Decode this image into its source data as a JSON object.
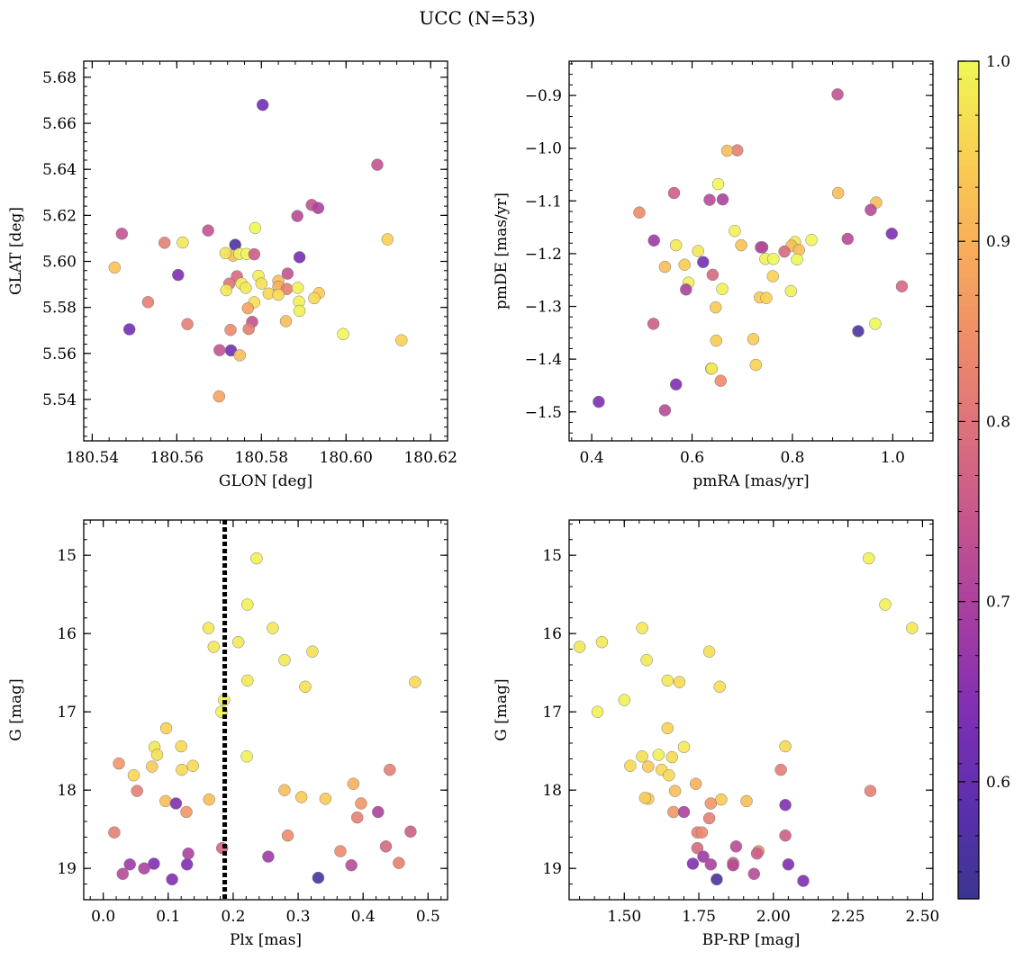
{
  "figure": {
    "title": "UCC (N=53)",
    "colorbar": {
      "range": [
        0.535,
        1.0
      ],
      "ticks": [
        0.6,
        0.7,
        0.8,
        0.9,
        1.0
      ],
      "tick_labels": [
        "0.6",
        "0.7",
        "0.8",
        "0.9",
        "1.0"
      ],
      "colormap": "plasma",
      "colors": [
        "#3a3691",
        "#5b2fae",
        "#7e2fb4",
        "#a53da3",
        "#c4538f",
        "#dc6f7c",
        "#ee8c69",
        "#f8ad5a",
        "#f9cf52",
        "#f0f756"
      ]
    }
  },
  "chart_data": [
    {
      "type": "scatter",
      "xlabel": "GLON [deg]",
      "ylabel": "GLAT [deg]",
      "xlim": [
        180.538,
        180.624
      ],
      "ylim": [
        5.522,
        5.687
      ],
      "xticks": [
        180.54,
        180.56,
        180.58,
        180.6,
        180.62
      ],
      "xtick_labels": [
        "180.54",
        "180.56",
        "180.58",
        "180.60",
        "180.62"
      ],
      "yticks": [
        5.54,
        5.56,
        5.58,
        5.6,
        5.62,
        5.64,
        5.66,
        5.68
      ],
      "ytick_labels": [
        "5.54",
        "5.56",
        "5.58",
        "5.60",
        "5.62",
        "5.64",
        "5.66",
        "5.68"
      ],
      "points": [
        [
          180.5803,
          5.668,
          0.62
        ],
        [
          180.6074,
          5.642,
          0.74
        ],
        [
          180.5919,
          5.6245,
          0.74
        ],
        [
          180.5934,
          5.6232,
          0.7
        ],
        [
          180.5885,
          5.6197,
          0.72
        ],
        [
          180.547,
          5.612,
          0.74
        ],
        [
          180.5674,
          5.6134,
          0.74
        ],
        [
          180.5785,
          5.6145,
          1.0
        ],
        [
          180.5571,
          5.6081,
          0.82
        ],
        [
          180.5614,
          5.6082,
          0.98
        ],
        [
          180.5738,
          5.6072,
          0.56
        ],
        [
          180.6098,
          5.6096,
          0.95
        ],
        [
          180.5453,
          5.5973,
          0.93
        ],
        [
          180.5603,
          5.5941,
          0.64
        ],
        [
          180.5733,
          5.6025,
          0.92
        ],
        [
          180.5715,
          5.6036,
          0.97
        ],
        [
          180.5748,
          5.6033,
          0.99
        ],
        [
          180.5765,
          5.6032,
          1.0
        ],
        [
          180.5783,
          5.6031,
          0.76
        ],
        [
          180.589,
          5.6018,
          0.63
        ],
        [
          180.5862,
          5.5947,
          0.74
        ],
        [
          180.5793,
          5.5937,
          0.99
        ],
        [
          180.5742,
          5.5935,
          0.78
        ],
        [
          180.5724,
          5.5903,
          0.8
        ],
        [
          180.5753,
          5.5904,
          0.99
        ],
        [
          180.58,
          5.5904,
          0.97
        ],
        [
          180.584,
          5.5915,
          0.92
        ],
        [
          180.584,
          5.589,
          0.9
        ],
        [
          180.586,
          5.588,
          0.82
        ],
        [
          180.5886,
          5.5885,
          0.99
        ],
        [
          180.5717,
          5.5875,
          0.98
        ],
        [
          180.5763,
          5.5885,
          0.98
        ],
        [
          180.5936,
          5.5862,
          0.94
        ],
        [
          180.5817,
          5.586,
          0.96
        ],
        [
          180.584,
          5.5855,
          0.96
        ],
        [
          180.5925,
          5.584,
          0.96
        ],
        [
          180.5889,
          5.5825,
          0.99
        ],
        [
          180.5532,
          5.5823,
          0.82
        ],
        [
          180.5783,
          5.5822,
          0.97
        ],
        [
          180.589,
          5.5785,
          0.99
        ],
        [
          180.5768,
          5.5796,
          0.88
        ],
        [
          180.5625,
          5.5727,
          0.82
        ],
        [
          180.5778,
          5.5737,
          0.74
        ],
        [
          180.5858,
          5.574,
          0.92
        ],
        [
          180.5488,
          5.5705,
          0.62
        ],
        [
          180.5727,
          5.5702,
          0.84
        ],
        [
          180.577,
          5.5706,
          0.82
        ],
        [
          180.5993,
          5.5684,
          1.0
        ],
        [
          180.6131,
          5.5657,
          0.95
        ],
        [
          180.5701,
          5.5614,
          0.74
        ],
        [
          180.5728,
          5.5613,
          0.62
        ],
        [
          180.5749,
          5.5592,
          0.92
        ],
        [
          180.57,
          5.5413,
          0.88
        ]
      ]
    },
    {
      "type": "scatter",
      "xlabel": "pmRA [mas/yr]",
      "ylabel": "pmDE [mas/yr]",
      "xlim": [
        0.355,
        1.08
      ],
      "ylim": [
        -1.555,
        -0.835
      ],
      "xticks": [
        0.4,
        0.6,
        0.8,
        1.0
      ],
      "xtick_labels": [
        "0.4",
        "0.6",
        "0.8",
        "1.0"
      ],
      "yticks": [
        -0.9,
        -1.0,
        -1.1,
        -1.2,
        -1.3,
        -1.4,
        -1.5
      ],
      "ytick_labels": [
        "−0.9",
        "−1.0",
        "−1.1",
        "−1.2",
        "−1.3",
        "−1.4",
        "−1.5"
      ],
      "points": [
        [
          0.89,
          -0.898,
          0.74
        ],
        [
          0.69,
          -1.004,
          0.82
        ],
        [
          0.67,
          -1.005,
          0.92
        ],
        [
          0.652,
          -1.068,
          1.0
        ],
        [
          0.891,
          -1.085,
          0.92
        ],
        [
          0.564,
          -1.085,
          0.76
        ],
        [
          0.635,
          -1.098,
          0.72
        ],
        [
          0.661,
          -1.097,
          0.7
        ],
        [
          0.967,
          -1.103,
          0.92
        ],
        [
          0.956,
          -1.117,
          0.72
        ],
        [
          0.495,
          -1.122,
          0.84
        ],
        [
          0.685,
          -1.157,
          0.99
        ],
        [
          0.998,
          -1.162,
          0.64
        ],
        [
          0.524,
          -1.175,
          0.68
        ],
        [
          0.91,
          -1.172,
          0.72
        ],
        [
          0.838,
          -1.174,
          1.0
        ],
        [
          0.805,
          -1.178,
          0.98
        ],
        [
          0.798,
          -1.185,
          0.92
        ],
        [
          0.568,
          -1.184,
          0.98
        ],
        [
          0.698,
          -1.184,
          0.93
        ],
        [
          0.74,
          -1.188,
          0.7
        ],
        [
          0.612,
          -1.195,
          0.98
        ],
        [
          0.784,
          -1.196,
          0.78
        ],
        [
          0.813,
          -1.193,
          0.92
        ],
        [
          0.746,
          -1.21,
          0.99
        ],
        [
          0.762,
          -1.21,
          1.0
        ],
        [
          0.622,
          -1.216,
          0.62
        ],
        [
          0.809,
          -1.211,
          1.0
        ],
        [
          0.546,
          -1.225,
          0.92
        ],
        [
          0.585,
          -1.221,
          0.94
        ],
        [
          0.641,
          -1.24,
          0.78
        ],
        [
          0.761,
          -1.243,
          0.95
        ],
        [
          0.593,
          -1.255,
          0.99
        ],
        [
          0.588,
          -1.268,
          0.7
        ],
        [
          0.66,
          -1.267,
          0.99
        ],
        [
          1.018,
          -1.262,
          0.78
        ],
        [
          0.735,
          -1.283,
          0.94
        ],
        [
          0.748,
          -1.284,
          0.95
        ],
        [
          0.797,
          -1.271,
          0.99
        ],
        [
          0.523,
          -1.333,
          0.76
        ],
        [
          0.965,
          -1.333,
          1.0
        ],
        [
          0.647,
          -1.302,
          0.94
        ],
        [
          0.931,
          -1.347,
          0.56
        ],
        [
          0.722,
          -1.362,
          0.94
        ],
        [
          0.648,
          -1.365,
          0.94
        ],
        [
          0.727,
          -1.411,
          0.95
        ],
        [
          0.638,
          -1.418,
          0.98
        ],
        [
          0.657,
          -1.441,
          0.84
        ],
        [
          0.568,
          -1.448,
          0.64
        ],
        [
          0.414,
          -1.481,
          0.64
        ],
        [
          0.546,
          -1.497,
          0.72
        ],
        [
          0.639,
          -1.418,
          0.98
        ],
        [
          0.737,
          -1.188,
          0.72
        ]
      ]
    },
    {
      "type": "scatter",
      "xlabel": "Plx [mas]",
      "ylabel": "G [mag]",
      "xlim": [
        -0.03,
        0.53
      ],
      "ylim": [
        19.4,
        14.55
      ],
      "vline": 0.187,
      "xticks": [
        0.0,
        0.1,
        0.2,
        0.3,
        0.4,
        0.5
      ],
      "xtick_labels": [
        "0.0",
        "0.1",
        "0.2",
        "0.3",
        "0.4",
        "0.5"
      ],
      "yticks": [
        15,
        16,
        17,
        18,
        19
      ],
      "ytick_labels": [
        "15",
        "16",
        "17",
        "18",
        "19"
      ],
      "points": [
        [
          0.236,
          15.04,
          0.99
        ],
        [
          0.222,
          15.63,
          0.99
        ],
        [
          0.261,
          15.93,
          0.98
        ],
        [
          0.162,
          15.93,
          0.98
        ],
        [
          0.17,
          16.17,
          0.98
        ],
        [
          0.208,
          16.11,
          0.98
        ],
        [
          0.322,
          16.23,
          0.97
        ],
        [
          0.279,
          16.34,
          0.98
        ],
        [
          0.222,
          16.6,
          0.98
        ],
        [
          0.48,
          16.62,
          0.96
        ],
        [
          0.311,
          16.68,
          0.97
        ],
        [
          0.186,
          16.85,
          0.99
        ],
        [
          0.182,
          17.0,
          0.99
        ],
        [
          0.097,
          17.21,
          0.95
        ],
        [
          0.079,
          17.45,
          0.98
        ],
        [
          0.12,
          17.44,
          0.96
        ],
        [
          0.083,
          17.55,
          0.97
        ],
        [
          0.221,
          17.57,
          0.99
        ],
        [
          0.024,
          17.66,
          0.86
        ],
        [
          0.138,
          17.69,
          0.96
        ],
        [
          0.075,
          17.7,
          0.94
        ],
        [
          0.121,
          17.74,
          0.96
        ],
        [
          0.441,
          17.74,
          0.82
        ],
        [
          0.047,
          17.81,
          0.96
        ],
        [
          0.385,
          17.92,
          0.9
        ],
        [
          0.052,
          18.01,
          0.82
        ],
        [
          0.279,
          18.0,
          0.92
        ],
        [
          0.305,
          18.09,
          0.94
        ],
        [
          0.342,
          18.11,
          0.94
        ],
        [
          0.096,
          18.14,
          0.92
        ],
        [
          0.112,
          18.17,
          0.64
        ],
        [
          0.163,
          18.12,
          0.92
        ],
        [
          0.397,
          18.17,
          0.86
        ],
        [
          0.128,
          18.28,
          0.86
        ],
        [
          0.423,
          18.28,
          0.7
        ],
        [
          0.391,
          18.35,
          0.82
        ],
        [
          0.017,
          18.54,
          0.82
        ],
        [
          0.473,
          18.53,
          0.76
        ],
        [
          0.284,
          18.58,
          0.84
        ],
        [
          0.183,
          18.74,
          0.78
        ],
        [
          0.435,
          18.72,
          0.78
        ],
        [
          0.365,
          18.78,
          0.84
        ],
        [
          0.131,
          18.81,
          0.7
        ],
        [
          0.254,
          18.85,
          0.68
        ],
        [
          0.041,
          18.95,
          0.68
        ],
        [
          0.078,
          18.94,
          0.64
        ],
        [
          0.129,
          18.95,
          0.64
        ],
        [
          0.382,
          18.96,
          0.72
        ],
        [
          0.455,
          18.93,
          0.82
        ],
        [
          0.03,
          19.07,
          0.72
        ],
        [
          0.106,
          19.14,
          0.64
        ],
        [
          0.331,
          19.12,
          0.56
        ],
        [
          0.063,
          19.0,
          0.7
        ]
      ]
    },
    {
      "type": "scatter",
      "xlabel": "BP-RP [mag]",
      "ylabel": "G [mag]",
      "xlim": [
        1.315,
        2.535
      ],
      "ylim": [
        19.4,
        14.55
      ],
      "xticks": [
        1.5,
        1.75,
        2.0,
        2.25,
        2.5
      ],
      "xtick_labels": [
        "1.50",
        "1.75",
        "2.00",
        "2.25",
        "2.50"
      ],
      "yticks": [
        15,
        16,
        17,
        18,
        19
      ],
      "ytick_labels": [
        "15",
        "16",
        "17",
        "18",
        "19"
      ],
      "points": [
        [
          2.32,
          15.04,
          0.99
        ],
        [
          2.375,
          15.63,
          0.99
        ],
        [
          2.465,
          15.93,
          0.98
        ],
        [
          1.56,
          15.93,
          0.98
        ],
        [
          1.35,
          16.17,
          0.98
        ],
        [
          1.425,
          16.11,
          0.98
        ],
        [
          1.785,
          16.23,
          0.97
        ],
        [
          1.575,
          16.34,
          0.98
        ],
        [
          1.645,
          16.6,
          0.98
        ],
        [
          1.685,
          16.62,
          0.96
        ],
        [
          1.82,
          16.68,
          0.97
        ],
        [
          1.5,
          16.85,
          0.99
        ],
        [
          1.41,
          17.0,
          0.99
        ],
        [
          1.645,
          17.21,
          0.95
        ],
        [
          1.7,
          17.45,
          0.98
        ],
        [
          2.04,
          17.44,
          0.96
        ],
        [
          1.56,
          17.57,
          0.97
        ],
        [
          1.615,
          17.55,
          0.99
        ],
        [
          1.66,
          17.58,
          0.96
        ],
        [
          1.52,
          17.69,
          0.96
        ],
        [
          1.58,
          17.7,
          0.94
        ],
        [
          1.625,
          17.74,
          0.96
        ],
        [
          2.025,
          17.74,
          0.82
        ],
        [
          1.65,
          17.81,
          0.96
        ],
        [
          1.74,
          17.92,
          0.9
        ],
        [
          1.67,
          18.01,
          0.92
        ],
        [
          2.325,
          18.01,
          0.82
        ],
        [
          1.825,
          18.12,
          0.94
        ],
        [
          1.91,
          18.14,
          0.92
        ],
        [
          1.58,
          18.11,
          0.94
        ],
        [
          1.79,
          18.17,
          0.86
        ],
        [
          2.04,
          18.19,
          0.64
        ],
        [
          1.665,
          18.28,
          0.86
        ],
        [
          1.7,
          18.28,
          0.7
        ],
        [
          1.785,
          18.36,
          0.82
        ],
        [
          1.745,
          18.54,
          0.82
        ],
        [
          1.76,
          18.54,
          0.84
        ],
        [
          2.04,
          18.58,
          0.76
        ],
        [
          1.745,
          18.74,
          0.78
        ],
        [
          1.875,
          18.72,
          0.72
        ],
        [
          1.95,
          18.78,
          0.84
        ],
        [
          1.945,
          18.81,
          0.76
        ],
        [
          1.765,
          18.85,
          0.68
        ],
        [
          1.73,
          18.94,
          0.64
        ],
        [
          1.79,
          18.95,
          0.7
        ],
        [
          1.865,
          18.95,
          0.82
        ],
        [
          2.05,
          18.95,
          0.64
        ],
        [
          1.865,
          18.93,
          0.78
        ],
        [
          1.935,
          19.07,
          0.72
        ],
        [
          1.81,
          19.14,
          0.56
        ],
        [
          2.1,
          19.16,
          0.64
        ],
        [
          1.57,
          18.1,
          0.94
        ],
        [
          1.865,
          18.96,
          0.72
        ]
      ]
    }
  ]
}
